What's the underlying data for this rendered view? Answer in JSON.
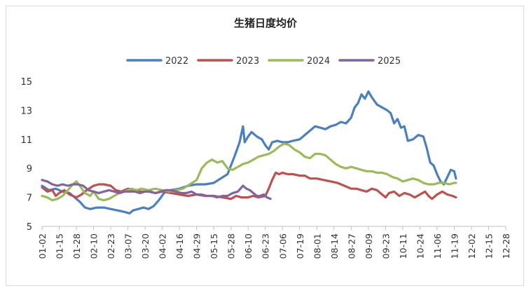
{
  "chart_data": {
    "type": "line",
    "title": "生猪日度均价",
    "xlabel": "",
    "ylabel": "",
    "x_tick_labels": [
      "01-02",
      "01-15",
      "01-28",
      "02-10",
      "02-23",
      "03-07",
      "03-20",
      "04-02",
      "04-16",
      "04-29",
      "05-15",
      "05-28",
      "06-10",
      "06-23",
      "07-06",
      "07-19",
      "08-01",
      "08-14",
      "08-27",
      "09-09",
      "09-23",
      "10-11",
      "10-24",
      "11-06",
      "11-19",
      "12-02",
      "12-15",
      "12-28"
    ],
    "y_ticks": [
      5,
      7,
      9,
      11,
      13,
      15
    ],
    "ylim": [
      5,
      15
    ],
    "grid": false,
    "legend": "top-center",
    "colors": {
      "2022": "#4a7fc1",
      "2023": "#c0504d",
      "2024": "#9bbb59",
      "2025": "#8064a2"
    },
    "series": [
      {
        "name": "2022",
        "points": [
          [
            0,
            7.8
          ],
          [
            0.4,
            7.5
          ],
          [
            0.8,
            7.6
          ],
          [
            1.2,
            7.4
          ],
          [
            1.6,
            7.3
          ],
          [
            1.8,
            7.1
          ],
          [
            2.0,
            6.9
          ],
          [
            2.2,
            6.7
          ],
          [
            2.5,
            6.3
          ],
          [
            2.8,
            6.2
          ],
          [
            3.2,
            6.3
          ],
          [
            3.6,
            6.3
          ],
          [
            4.0,
            6.2
          ],
          [
            4.4,
            6.1
          ],
          [
            4.8,
            6.0
          ],
          [
            5.1,
            5.9
          ],
          [
            5.3,
            6.1
          ],
          [
            5.6,
            6.2
          ],
          [
            5.9,
            6.3
          ],
          [
            6.2,
            6.2
          ],
          [
            6.5,
            6.4
          ],
          [
            6.8,
            6.8
          ],
          [
            7.1,
            7.3
          ],
          [
            7.5,
            7.5
          ],
          [
            8.0,
            7.6
          ],
          [
            8.5,
            7.8
          ],
          [
            9.0,
            7.9
          ],
          [
            9.5,
            7.9
          ],
          [
            10.0,
            8.0
          ],
          [
            10.4,
            8.3
          ],
          [
            10.8,
            8.6
          ],
          [
            11.2,
            9.8
          ],
          [
            11.5,
            10.8
          ],
          [
            11.7,
            11.9
          ],
          [
            11.8,
            10.8
          ],
          [
            12.0,
            11.2
          ],
          [
            12.2,
            11.5
          ],
          [
            12.5,
            11.2
          ],
          [
            12.8,
            11.0
          ],
          [
            13.0,
            10.6
          ],
          [
            13.2,
            10.3
          ],
          [
            13.4,
            10.8
          ],
          [
            13.7,
            10.9
          ],
          [
            14.0,
            10.8
          ],
          [
            14.3,
            10.8
          ],
          [
            14.6,
            10.9
          ],
          [
            15.0,
            11.0
          ],
          [
            15.3,
            11.3
          ],
          [
            15.6,
            11.6
          ],
          [
            15.9,
            11.9
          ],
          [
            16.2,
            11.8
          ],
          [
            16.5,
            11.7
          ],
          [
            16.8,
            11.9
          ],
          [
            17.1,
            12.0
          ],
          [
            17.4,
            12.2
          ],
          [
            17.7,
            12.1
          ],
          [
            18.0,
            12.5
          ],
          [
            18.2,
            13.2
          ],
          [
            18.4,
            13.5
          ],
          [
            18.6,
            14.1
          ],
          [
            18.8,
            13.8
          ],
          [
            19.0,
            14.3
          ],
          [
            19.2,
            13.9
          ],
          [
            19.5,
            13.4
          ],
          [
            19.8,
            13.2
          ],
          [
            20.1,
            13.0
          ],
          [
            20.3,
            12.8
          ],
          [
            20.5,
            12.1
          ],
          [
            20.7,
            12.4
          ],
          [
            20.9,
            11.8
          ],
          [
            21.1,
            11.9
          ],
          [
            21.3,
            10.9
          ],
          [
            21.6,
            11.0
          ],
          [
            21.9,
            11.3
          ],
          [
            22.2,
            11.2
          ],
          [
            22.4,
            10.4
          ],
          [
            22.6,
            9.4
          ],
          [
            22.8,
            9.2
          ],
          [
            23.0,
            8.6
          ],
          [
            23.2,
            8.1
          ],
          [
            23.4,
            7.9
          ],
          [
            23.6,
            8.4
          ],
          [
            23.8,
            8.9
          ],
          [
            24.0,
            8.8
          ],
          [
            24.1,
            8.3
          ]
        ]
      },
      {
        "name": "2023",
        "points": [
          [
            0,
            7.7
          ],
          [
            0.3,
            7.4
          ],
          [
            0.6,
            7.5
          ],
          [
            0.8,
            7.1
          ],
          [
            1.0,
            7.3
          ],
          [
            1.3,
            7.5
          ],
          [
            1.6,
            7.2
          ],
          [
            1.8,
            7.1
          ],
          [
            2.0,
            7.0
          ],
          [
            2.3,
            7.2
          ],
          [
            2.6,
            7.5
          ],
          [
            3.0,
            7.8
          ],
          [
            3.3,
            7.9
          ],
          [
            3.6,
            7.9
          ],
          [
            4.0,
            7.8
          ],
          [
            4.3,
            7.5
          ],
          [
            4.6,
            7.4
          ],
          [
            5.0,
            7.6
          ],
          [
            5.4,
            7.5
          ],
          [
            5.8,
            7.4
          ],
          [
            6.2,
            7.4
          ],
          [
            6.6,
            7.3
          ],
          [
            7.0,
            7.4
          ],
          [
            7.5,
            7.3
          ],
          [
            8.0,
            7.2
          ],
          [
            8.5,
            7.1
          ],
          [
            9.0,
            7.2
          ],
          [
            9.5,
            7.1
          ],
          [
            10.0,
            7.1
          ],
          [
            10.5,
            7.0
          ],
          [
            11.0,
            6.9
          ],
          [
            11.3,
            7.1
          ],
          [
            11.6,
            7.0
          ],
          [
            12.0,
            7.0
          ],
          [
            12.3,
            7.1
          ],
          [
            12.6,
            7.0
          ],
          [
            13.0,
            7.1
          ],
          [
            13.2,
            7.6
          ],
          [
            13.4,
            8.2
          ],
          [
            13.6,
            8.7
          ],
          [
            13.8,
            8.6
          ],
          [
            14.0,
            8.7
          ],
          [
            14.3,
            8.6
          ],
          [
            14.6,
            8.6
          ],
          [
            15.0,
            8.5
          ],
          [
            15.3,
            8.5
          ],
          [
            15.6,
            8.3
          ],
          [
            16.0,
            8.3
          ],
          [
            16.4,
            8.2
          ],
          [
            16.8,
            8.1
          ],
          [
            17.2,
            8.0
          ],
          [
            17.6,
            7.8
          ],
          [
            18.0,
            7.6
          ],
          [
            18.3,
            7.6
          ],
          [
            18.6,
            7.5
          ],
          [
            18.9,
            7.4
          ],
          [
            19.2,
            7.6
          ],
          [
            19.5,
            7.5
          ],
          [
            19.8,
            7.2
          ],
          [
            20.0,
            7.0
          ],
          [
            20.2,
            7.3
          ],
          [
            20.5,
            7.4
          ],
          [
            20.8,
            7.1
          ],
          [
            21.1,
            7.3
          ],
          [
            21.4,
            7.2
          ],
          [
            21.7,
            7.0
          ],
          [
            22.0,
            7.2
          ],
          [
            22.3,
            7.4
          ],
          [
            22.5,
            7.1
          ],
          [
            22.7,
            6.9
          ],
          [
            23.0,
            7.2
          ],
          [
            23.3,
            7.4
          ],
          [
            23.6,
            7.2
          ],
          [
            23.9,
            7.1
          ],
          [
            24.1,
            7.0
          ]
        ]
      },
      {
        "name": "2024",
        "points": [
          [
            0,
            7.1
          ],
          [
            0.3,
            7.0
          ],
          [
            0.6,
            6.8
          ],
          [
            0.9,
            6.9
          ],
          [
            1.2,
            7.1
          ],
          [
            1.5,
            7.5
          ],
          [
            1.8,
            7.9
          ],
          [
            2.0,
            8.1
          ],
          [
            2.2,
            7.8
          ],
          [
            2.5,
            7.3
          ],
          [
            2.8,
            7.1
          ],
          [
            3.0,
            7.4
          ],
          [
            3.3,
            6.9
          ],
          [
            3.6,
            6.8
          ],
          [
            3.9,
            6.9
          ],
          [
            4.2,
            7.1
          ],
          [
            4.5,
            7.3
          ],
          [
            4.8,
            7.4
          ],
          [
            5.2,
            7.6
          ],
          [
            5.5,
            7.5
          ],
          [
            5.8,
            7.6
          ],
          [
            6.2,
            7.5
          ],
          [
            6.6,
            7.6
          ],
          [
            7.0,
            7.5
          ],
          [
            7.4,
            7.4
          ],
          [
            7.8,
            7.5
          ],
          [
            8.2,
            7.6
          ],
          [
            8.6,
            7.9
          ],
          [
            9.0,
            8.2
          ],
          [
            9.3,
            9.0
          ],
          [
            9.6,
            9.4
          ],
          [
            9.9,
            9.6
          ],
          [
            10.2,
            9.4
          ],
          [
            10.5,
            9.5
          ],
          [
            10.8,
            9.0
          ],
          [
            11.1,
            8.9
          ],
          [
            11.4,
            9.1
          ],
          [
            11.7,
            9.3
          ],
          [
            12.0,
            9.4
          ],
          [
            12.3,
            9.6
          ],
          [
            12.6,
            9.8
          ],
          [
            12.9,
            9.9
          ],
          [
            13.2,
            10.0
          ],
          [
            13.5,
            10.2
          ],
          [
            13.8,
            10.5
          ],
          [
            14.1,
            10.7
          ],
          [
            14.4,
            10.6
          ],
          [
            14.7,
            10.3
          ],
          [
            15.0,
            10.1
          ],
          [
            15.3,
            9.8
          ],
          [
            15.6,
            9.7
          ],
          [
            15.9,
            10.0
          ],
          [
            16.2,
            10.0
          ],
          [
            16.5,
            9.9
          ],
          [
            16.8,
            9.6
          ],
          [
            17.1,
            9.3
          ],
          [
            17.4,
            9.1
          ],
          [
            17.7,
            9.0
          ],
          [
            18.0,
            9.1
          ],
          [
            18.3,
            9.0
          ],
          [
            18.6,
            8.9
          ],
          [
            18.9,
            8.8
          ],
          [
            19.2,
            8.8
          ],
          [
            19.5,
            8.7
          ],
          [
            19.8,
            8.7
          ],
          [
            20.1,
            8.6
          ],
          [
            20.4,
            8.4
          ],
          [
            20.7,
            8.3
          ],
          [
            21.0,
            8.1
          ],
          [
            21.3,
            8.2
          ],
          [
            21.6,
            8.3
          ],
          [
            21.9,
            8.2
          ],
          [
            22.2,
            8.0
          ],
          [
            22.5,
            7.9
          ],
          [
            22.8,
            7.9
          ],
          [
            23.1,
            8.0
          ],
          [
            23.4,
            8.0
          ],
          [
            23.7,
            7.9
          ],
          [
            24.0,
            8.0
          ],
          [
            24.1,
            8.0
          ]
        ]
      },
      {
        "name": "2025",
        "points": [
          [
            0,
            8.2
          ],
          [
            0.3,
            8.1
          ],
          [
            0.6,
            7.9
          ],
          [
            0.9,
            7.8
          ],
          [
            1.2,
            7.9
          ],
          [
            1.5,
            7.8
          ],
          [
            1.8,
            7.9
          ],
          [
            2.1,
            7.9
          ],
          [
            2.4,
            7.8
          ],
          [
            2.7,
            7.5
          ],
          [
            3.0,
            7.4
          ],
          [
            3.3,
            7.3
          ],
          [
            3.6,
            7.4
          ],
          [
            3.9,
            7.5
          ],
          [
            4.2,
            7.4
          ],
          [
            4.5,
            7.3
          ],
          [
            4.8,
            7.4
          ],
          [
            5.1,
            7.4
          ],
          [
            5.4,
            7.4
          ],
          [
            5.7,
            7.3
          ],
          [
            6.0,
            7.4
          ],
          [
            6.3,
            7.4
          ],
          [
            6.6,
            7.3
          ],
          [
            6.9,
            7.4
          ],
          [
            7.2,
            7.5
          ],
          [
            7.5,
            7.5
          ],
          [
            7.8,
            7.4
          ],
          [
            8.1,
            7.3
          ],
          [
            8.4,
            7.3
          ],
          [
            8.7,
            7.4
          ],
          [
            9.0,
            7.2
          ],
          [
            9.3,
            7.2
          ],
          [
            9.6,
            7.1
          ],
          [
            9.9,
            7.1
          ],
          [
            10.2,
            7.0
          ],
          [
            10.5,
            7.1
          ],
          [
            10.8,
            7.1
          ],
          [
            11.1,
            7.3
          ],
          [
            11.4,
            7.4
          ],
          [
            11.7,
            7.8
          ],
          [
            11.9,
            7.6
          ],
          [
            12.1,
            7.5
          ],
          [
            12.3,
            7.3
          ],
          [
            12.5,
            7.1
          ],
          [
            12.7,
            7.1
          ],
          [
            12.9,
            7.2
          ],
          [
            13.1,
            7.0
          ],
          [
            13.3,
            6.9
          ]
        ]
      }
    ]
  }
}
